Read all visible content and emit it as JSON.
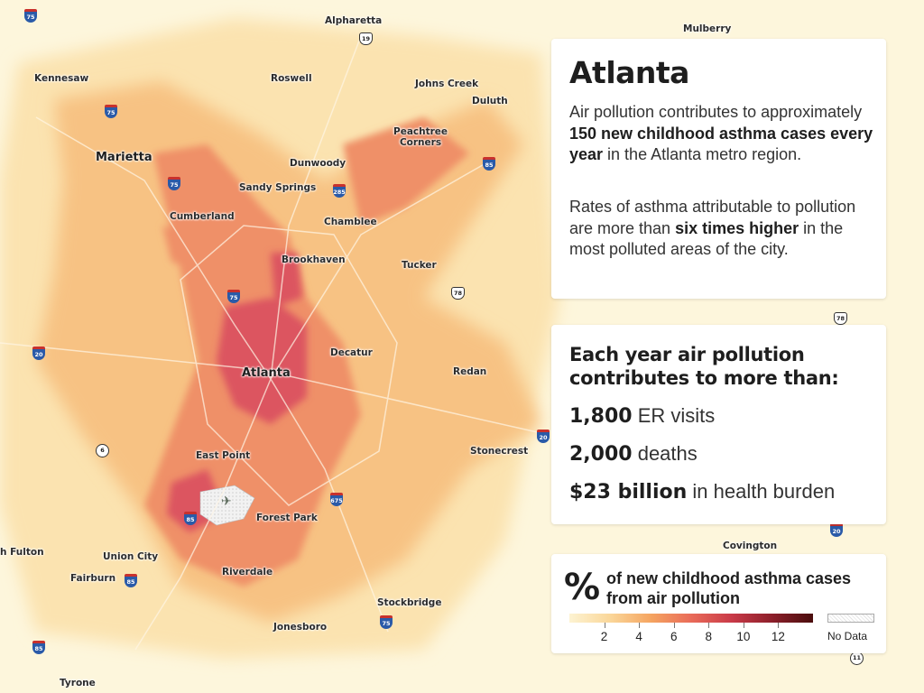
{
  "map": {
    "places": [
      {
        "name": "Alpharetta",
        "kind": "town"
      },
      {
        "name": "Mulberry",
        "kind": "town"
      },
      {
        "name": "Kennesaw",
        "kind": "town"
      },
      {
        "name": "Roswell",
        "kind": "town"
      },
      {
        "name": "Johns Creek",
        "kind": "town"
      },
      {
        "name": "Duluth",
        "kind": "town"
      },
      {
        "name": "Peachtree Corners",
        "kind": "town"
      },
      {
        "name": "Marietta",
        "kind": "city"
      },
      {
        "name": "Dunwoody",
        "kind": "town"
      },
      {
        "name": "Sandy Springs",
        "kind": "town"
      },
      {
        "name": "Cumberland",
        "kind": "town"
      },
      {
        "name": "Chamblee",
        "kind": "town"
      },
      {
        "name": "Brookhaven",
        "kind": "town"
      },
      {
        "name": "Tucker",
        "kind": "town"
      },
      {
        "name": "Decatur",
        "kind": "town"
      },
      {
        "name": "Atlanta",
        "kind": "city"
      },
      {
        "name": "Redan",
        "kind": "town"
      },
      {
        "name": "East Point",
        "kind": "town"
      },
      {
        "name": "Stonecrest",
        "kind": "town"
      },
      {
        "name": "Forest Park",
        "kind": "town"
      },
      {
        "name": "Union City",
        "kind": "town"
      },
      {
        "name": "Fairburn",
        "kind": "town"
      },
      {
        "name": "Riverdale",
        "kind": "town"
      },
      {
        "name": "Stockbridge",
        "kind": "town"
      },
      {
        "name": "Jonesboro",
        "kind": "town"
      },
      {
        "name": "Covington",
        "kind": "town"
      },
      {
        "name": "Tyrone",
        "kind": "town"
      },
      {
        "name": "h Fulton",
        "kind": "town"
      }
    ],
    "shields": [
      {
        "num": "75",
        "type": "interstate"
      },
      {
        "num": "19",
        "type": "us"
      },
      {
        "num": "75",
        "type": "interstate"
      },
      {
        "num": "75",
        "type": "interstate"
      },
      {
        "num": "85",
        "type": "interstate"
      },
      {
        "num": "285",
        "type": "interstate"
      },
      {
        "num": "75",
        "type": "interstate"
      },
      {
        "num": "78",
        "type": "us"
      },
      {
        "num": "78",
        "type": "us"
      },
      {
        "num": "20",
        "type": "interstate"
      },
      {
        "num": "6",
        "type": "state"
      },
      {
        "num": "20",
        "type": "interstate"
      },
      {
        "num": "675",
        "type": "interstate"
      },
      {
        "num": "85",
        "type": "interstate"
      },
      {
        "num": "85",
        "type": "interstate"
      },
      {
        "num": "75",
        "type": "interstate"
      },
      {
        "num": "85",
        "type": "interstate"
      },
      {
        "num": "20",
        "type": "interstate"
      },
      {
        "num": "11",
        "type": "state"
      }
    ],
    "colors": {
      "base": "#fdf6dc",
      "light": "#fbe7b8",
      "mid": "#f6b775",
      "high": "#ec8063",
      "top": "#d6445a",
      "nodata": "#ececec"
    }
  },
  "intro": {
    "title": "Atlanta",
    "p1_a": "Air pollution contributes to approximately ",
    "p1_b": "150 new childhood asthma cases every year",
    "p1_c": " in the Atlanta metro region.",
    "p2_a": "Rates of asthma attributable to pollution are more than ",
    "p2_b": "six times higher",
    "p2_c": " in the most polluted areas of the city."
  },
  "stats": {
    "heading": "Each year air pollution contributes to more than:",
    "items": [
      {
        "value": "1,800",
        "label": " ER visits"
      },
      {
        "value": "2,000",
        "label": " deaths"
      },
      {
        "value": "$23 billion",
        "label": " in health burden"
      }
    ]
  },
  "legend": {
    "symbol": "%",
    "title": "of new childhood asthma cases from air pollution",
    "ticks": [
      "2",
      "4",
      "6",
      "8",
      "10",
      "12"
    ],
    "tick_values": [
      2,
      4,
      6,
      8,
      10,
      12
    ],
    "scale_range": [
      0,
      14
    ],
    "nodata": "No Data"
  }
}
